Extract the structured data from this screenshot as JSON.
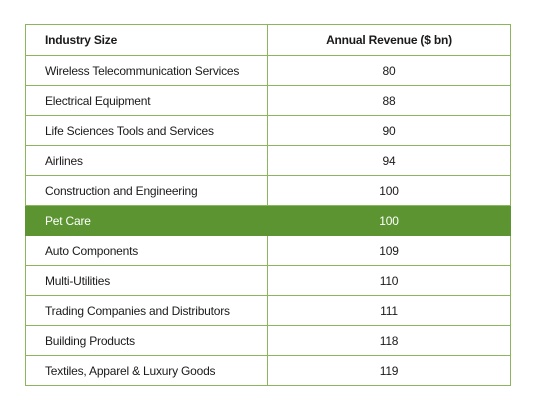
{
  "table": {
    "headers": {
      "industry": "Industry Size",
      "revenue": "Annual Revenue ($ bn)"
    },
    "highlight_color": "#5b9431",
    "border_color": "#8cb55e",
    "rows": [
      {
        "industry": "Wireless Telecommunication Services",
        "revenue": "80",
        "highlight": false
      },
      {
        "industry": "Electrical Equipment",
        "revenue": "88",
        "highlight": false
      },
      {
        "industry": "Life Sciences Tools and Services",
        "revenue": "90",
        "highlight": false
      },
      {
        "industry": "Airlines",
        "revenue": "94",
        "highlight": false
      },
      {
        "industry": "Construction and Engineering",
        "revenue": "100",
        "highlight": false
      },
      {
        "industry": "Pet Care",
        "revenue": "100",
        "highlight": true
      },
      {
        "industry": "Auto Components",
        "revenue": "109",
        "highlight": false
      },
      {
        "industry": "Multi-Utilities",
        "revenue": "110",
        "highlight": false
      },
      {
        "industry": "Trading Companies and Distributors",
        "revenue": "111",
        "highlight": false
      },
      {
        "industry": "Building Products",
        "revenue": "118",
        "highlight": false
      },
      {
        "industry": "Textiles, Apparel & Luxury Goods",
        "revenue": "119",
        "highlight": false
      }
    ]
  }
}
